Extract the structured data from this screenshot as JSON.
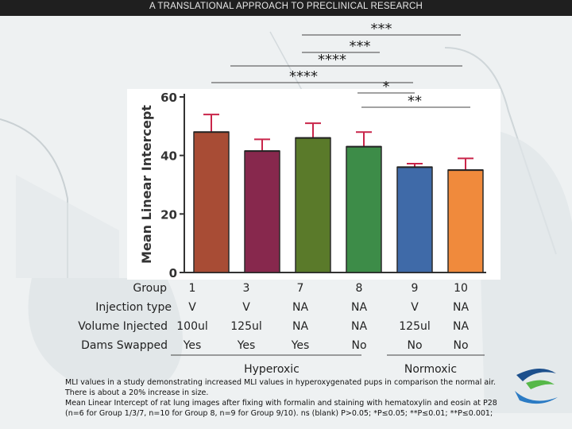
{
  "header": {
    "title": "A TRANSLATIONAL APPROACH TO PRECLINICAL RESEARCH"
  },
  "colors": {
    "bars": [
      "#a84c35",
      "#87284d",
      "#5a7a2a",
      "#3d8c48",
      "#3f6aa8",
      "#f08a3c"
    ],
    "error": "#c9254a"
  },
  "chart_data": {
    "type": "bar",
    "ylabel": "Mean Linear Intercept",
    "ylim": [
      0,
      60
    ],
    "yticks": [
      0,
      20,
      40,
      60
    ],
    "categories": [
      "1",
      "3",
      "7",
      "8",
      "9",
      "10"
    ],
    "values": [
      48,
      41.5,
      46,
      43,
      36,
      35
    ],
    "errors": [
      6,
      4,
      5,
      5,
      1.2,
      4
    ],
    "significance": [
      "***",
      "***",
      "****",
      "****",
      "*",
      "**"
    ]
  },
  "table": {
    "row_labels": [
      "Group",
      "Injection type",
      "Volume Injected",
      "Dams Swapped"
    ],
    "columns": [
      [
        "1",
        "V",
        "100ul",
        "Yes"
      ],
      [
        "3",
        "V",
        "125ul",
        "Yes"
      ],
      [
        "7",
        "NA",
        "NA",
        "Yes"
      ],
      [
        "8",
        "NA",
        "NA",
        "No"
      ],
      [
        "9",
        "V",
        "125ul",
        "No"
      ],
      [
        "10",
        "NA",
        "NA",
        "No"
      ]
    ],
    "groups": [
      "Hyperoxic",
      "Normoxic"
    ]
  },
  "caption": {
    "line1": "MLI values in a study demonstrating  increased MLI values in hyperoxygenated pups in comparison the normal air.",
    "line2": "There is about a 20% increase in size.",
    "line3": "Mean Linear Intercept of rat lung images after fixing with formalin and staining with hematoxylin and eosin at P28",
    "line4": "(n=6 for Group 1/3/7, n=10 for Group 8,  n=9 for Group 9/10).  ns (blank) P>0.05;  *P≤0.05;  **P≤0.01;  **P≤0.001;"
  }
}
